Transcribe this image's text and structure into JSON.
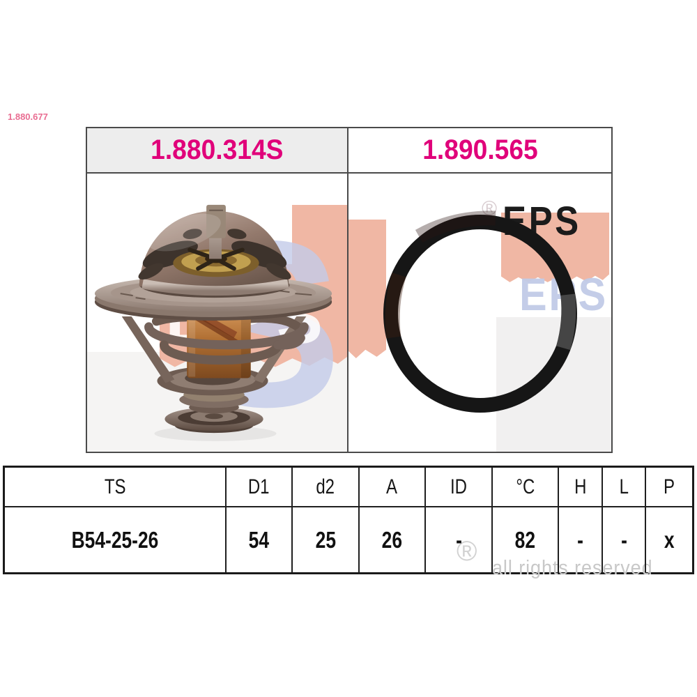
{
  "corner_code": "1.880.677",
  "header": {
    "left_part_number": "1.880.314S",
    "right_part_number": "1.890.565"
  },
  "products": {
    "left": "thermostat",
    "right": "gasket-seal-ring"
  },
  "watermark": {
    "brand": "EPS",
    "swoosh_letter": "S",
    "registered_symbol": "®",
    "rights_text": "all rights reserved"
  },
  "table": {
    "headers": [
      "TS",
      "D1",
      "d2",
      "A",
      "ID",
      "°C",
      "H",
      "L",
      "P"
    ],
    "rows": [
      [
        "B54-25-26",
        "54",
        "25",
        "26",
        "-",
        "82",
        "-",
        "-",
        "x"
      ]
    ]
  },
  "colors": {
    "part_number_pink": "#e0007a",
    "corner_code_pink": "#e96d92",
    "watermark_salmon": "#f0b7a4",
    "watermark_periwinkle": "#c3cbe8",
    "watermark_black": "#1b1b1b",
    "watermark_gray": "#c8c8c8",
    "panel_border": "#4a4a4a",
    "table_border": "#1a1a1a",
    "header_cell_bg": "#ededed"
  }
}
